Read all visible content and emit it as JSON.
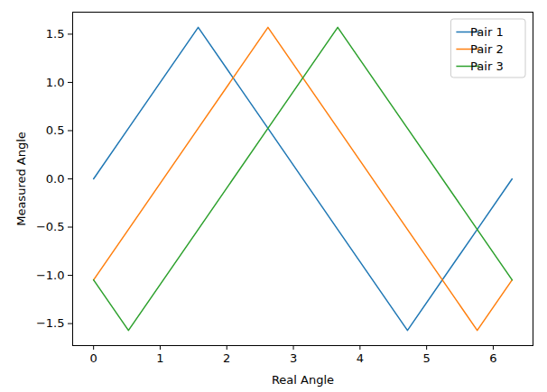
{
  "chart_data": {
    "type": "line",
    "x_label": "Real Angle",
    "y_label": "Measured Angle",
    "x": [
      0,
      0.5236,
      1.5708,
      2.618,
      3.665,
      4.7124,
      5.7596,
      6.2832
    ],
    "series": [
      {
        "name": "Pair 1",
        "color": "#1f77b4",
        "values": [
          0,
          0.5236,
          1.5708,
          0.5236,
          -0.5236,
          -1.5708,
          -0.5236,
          0
        ]
      },
      {
        "name": "Pair 2",
        "color": "#ff7f0e",
        "values": [
          -1.0472,
          -0.5236,
          0.5236,
          1.5708,
          0.5236,
          -0.5236,
          -1.5708,
          -1.0472
        ]
      },
      {
        "name": "Pair 3",
        "color": "#2ca02c",
        "values": [
          -1.0472,
          -1.5708,
          -0.5236,
          0.5236,
          1.5708,
          0.5236,
          -0.5236,
          -1.0472
        ]
      }
    ],
    "xlim": [
      -0.314,
      6.597
    ],
    "xticks": [
      0,
      1,
      2,
      3,
      4,
      5,
      6
    ],
    "ylim": [
      -1.728,
      1.728
    ],
    "yticks": [
      {
        "value": -1.5,
        "label": "−1.5"
      },
      {
        "value": -1.0,
        "label": "−1.0"
      },
      {
        "value": -0.5,
        "label": "−0.5"
      },
      {
        "value": 0,
        "label": "0.0"
      },
      {
        "value": 0.5,
        "label": "0.5"
      },
      {
        "value": 1.0,
        "label": "1.0"
      },
      1.5
    ],
    "legend": "upper right",
    "grid": false
  }
}
